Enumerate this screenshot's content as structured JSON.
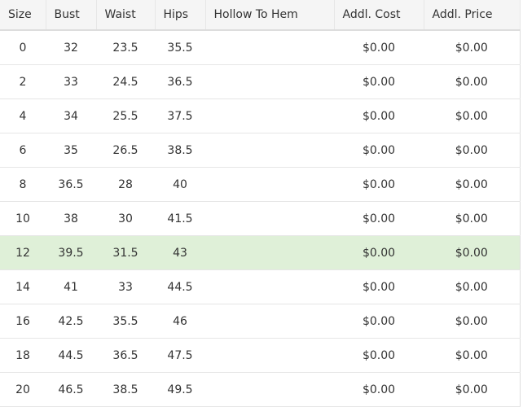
{
  "headers": [
    "Size",
    "Bust",
    "Waist",
    "Hips",
    "Hollow To Hem",
    "Addl. Cost",
    "Addl. Price"
  ],
  "highlight_color": "#dff0d8",
  "highlighted_size": "12",
  "rows": [
    [
      "0",
      "32",
      "23.5",
      "35.5",
      "",
      "$0.00",
      "$0.00"
    ],
    [
      "2",
      "33",
      "24.5",
      "36.5",
      "",
      "$0.00",
      "$0.00"
    ],
    [
      "4",
      "34",
      "25.5",
      "37.5",
      "",
      "$0.00",
      "$0.00"
    ],
    [
      "6",
      "35",
      "26.5",
      "38.5",
      "",
      "$0.00",
      "$0.00"
    ],
    [
      "8",
      "36.5",
      "28",
      "40",
      "",
      "$0.00",
      "$0.00"
    ],
    [
      "10",
      "38",
      "30",
      "41.5",
      "",
      "$0.00",
      "$0.00"
    ],
    [
      "12",
      "39.5",
      "31.5",
      "43",
      "",
      "$0.00",
      "$0.00"
    ],
    [
      "14",
      "41",
      "33",
      "44.5",
      "",
      "$0.00",
      "$0.00"
    ],
    [
      "16",
      "42.5",
      "35.5",
      "46",
      "",
      "$0.00",
      "$0.00"
    ],
    [
      "18",
      "44.5",
      "36.5",
      "47.5",
      "",
      "$0.00",
      "$0.00"
    ],
    [
      "20",
      "46.5",
      "38.5",
      "49.5",
      "",
      "$0.00",
      "$0.00"
    ]
  ]
}
